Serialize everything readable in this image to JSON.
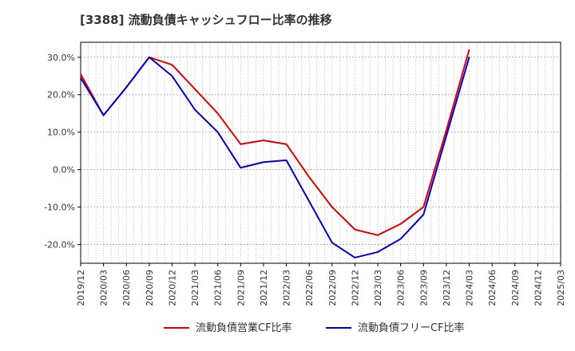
{
  "title": "[3388]  流動負債キャッシュフロー比率の推移",
  "colors": {
    "series1": "#dd0000",
    "series2": "#0000cc",
    "grid": "#999999",
    "frame": "#000000"
  },
  "chart_data": {
    "type": "line",
    "title": "[3388]  流動負債キャッシュフロー比率の推移",
    "xlabel": "",
    "ylabel": "",
    "x_ticks": [
      "2019/12",
      "2020/03",
      "2020/06",
      "2020/09",
      "2020/12",
      "2021/03",
      "2021/06",
      "2021/09",
      "2021/12",
      "2022/03",
      "2022/06",
      "2022/09",
      "2022/12",
      "2023/03",
      "2023/06",
      "2023/09",
      "2023/12",
      "2024/03",
      "2024/06",
      "2024/09",
      "2024/12",
      "2025/03"
    ],
    "y_ticks": [
      "-20.0%",
      "-10.0%",
      "0.0%",
      "10.0%",
      "20.0%",
      "30.0%"
    ],
    "y_tick_values": [
      -20,
      -10,
      0,
      10,
      20,
      30
    ],
    "ylim": [
      -25,
      34
    ],
    "grid": true,
    "legend_position": "bottom",
    "series": [
      {
        "name": "流動負債営業CF比率",
        "color": "#dd0000",
        "x": [
          "2019/12",
          "2020/03",
          "2020/06",
          "2020/09",
          "2020/12",
          "2021/03",
          "2021/06",
          "2021/09",
          "2021/12",
          "2022/03",
          "2022/06",
          "2022/09",
          "2022/12",
          "2023/03",
          "2023/06",
          "2023/09",
          "2023/12",
          "2024/03"
        ],
        "values": [
          25.5,
          14.5,
          22.0,
          30.0,
          28.0,
          21.5,
          15.0,
          6.8,
          7.8,
          6.8,
          -2.0,
          -10.0,
          -16.0,
          -17.5,
          -14.5,
          -10.0,
          10.5,
          32.0
        ]
      },
      {
        "name": "流動負債フリーCF比率",
        "color": "#0000cc",
        "x": [
          "2019/12",
          "2020/03",
          "2020/06",
          "2020/09",
          "2020/12",
          "2021/03",
          "2021/06",
          "2021/09",
          "2021/12",
          "2022/03",
          "2022/06",
          "2022/09",
          "2022/12",
          "2023/03",
          "2023/06",
          "2023/09",
          "2023/12",
          "2024/03"
        ],
        "values": [
          24.5,
          14.5,
          22.0,
          30.0,
          25.0,
          16.0,
          10.0,
          0.5,
          2.0,
          2.5,
          -8.5,
          -19.5,
          -23.5,
          -22.0,
          -18.5,
          -12.0,
          9.0,
          30.0
        ]
      }
    ]
  }
}
